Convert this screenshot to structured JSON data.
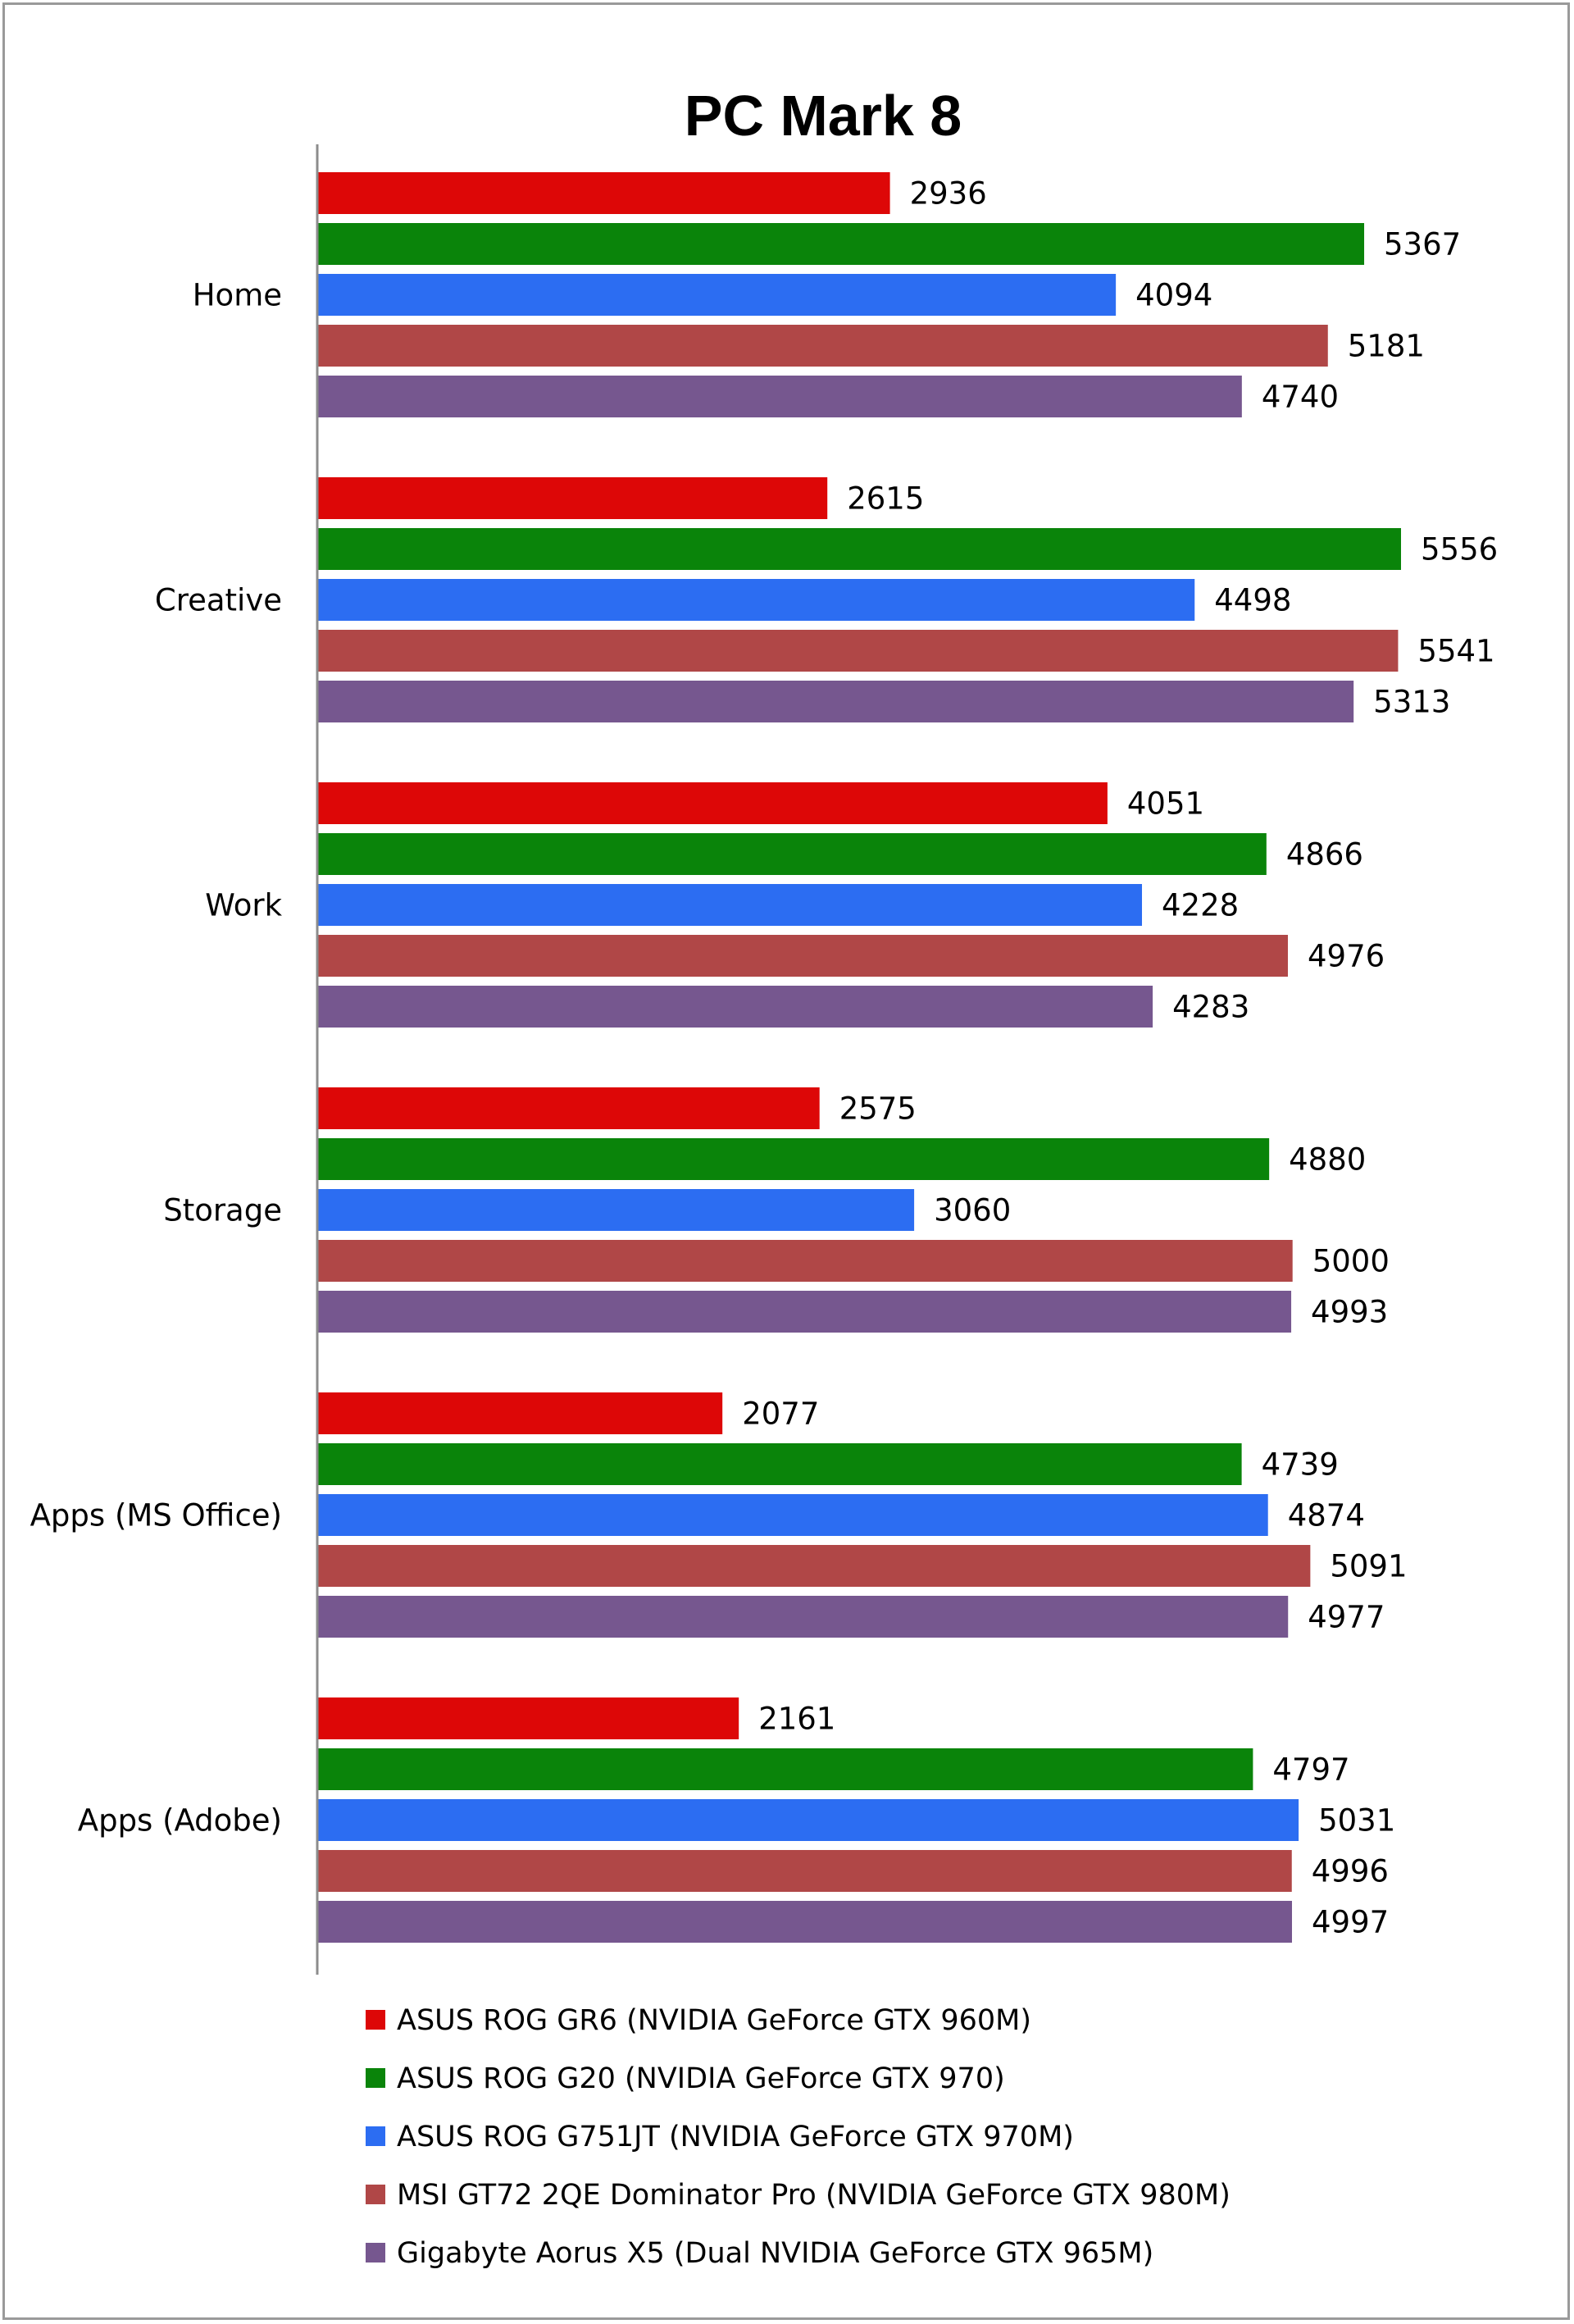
{
  "chart_data": {
    "type": "bar",
    "orientation": "horizontal",
    "title": "PC Mark 8",
    "xlabel": "",
    "ylabel": "",
    "xlim": [
      0,
      5800
    ],
    "grid": false,
    "legend_position": "bottom",
    "categories": [
      "Home",
      "Creative",
      "Work",
      "Storage",
      "Apps (MS Office)",
      "Apps (Adobe)"
    ],
    "series": [
      {
        "name": "ASUS ROG GR6 (NVIDIA GeForce GTX 960M)",
        "color": "#dd0707",
        "values": [
          2936,
          2615,
          4051,
          2575,
          2077,
          2161
        ]
      },
      {
        "name": "ASUS ROG G20 (NVIDIA GeForce GTX 970)",
        "color": "#0a840a",
        "values": [
          5367,
          5556,
          4866,
          4880,
          4739,
          4797
        ]
      },
      {
        "name": "ASUS ROG G751JT (NVIDIA GeForce GTX 970M)",
        "color": "#2c6df2",
        "values": [
          4094,
          4498,
          4228,
          3060,
          4874,
          5031
        ]
      },
      {
        "name": "MSI GT72 2QE Dominator Pro (NVIDIA GeForce GTX 980M)",
        "color": "#b04747",
        "values": [
          5181,
          5541,
          4976,
          5000,
          5091,
          4996
        ]
      },
      {
        "name": "Gigabyte Aorus X5 (Dual NVIDIA GeForce GTX 965M)",
        "color": "#76578f",
        "values": [
          4740,
          5313,
          4283,
          4993,
          4977,
          4997
        ]
      }
    ]
  }
}
